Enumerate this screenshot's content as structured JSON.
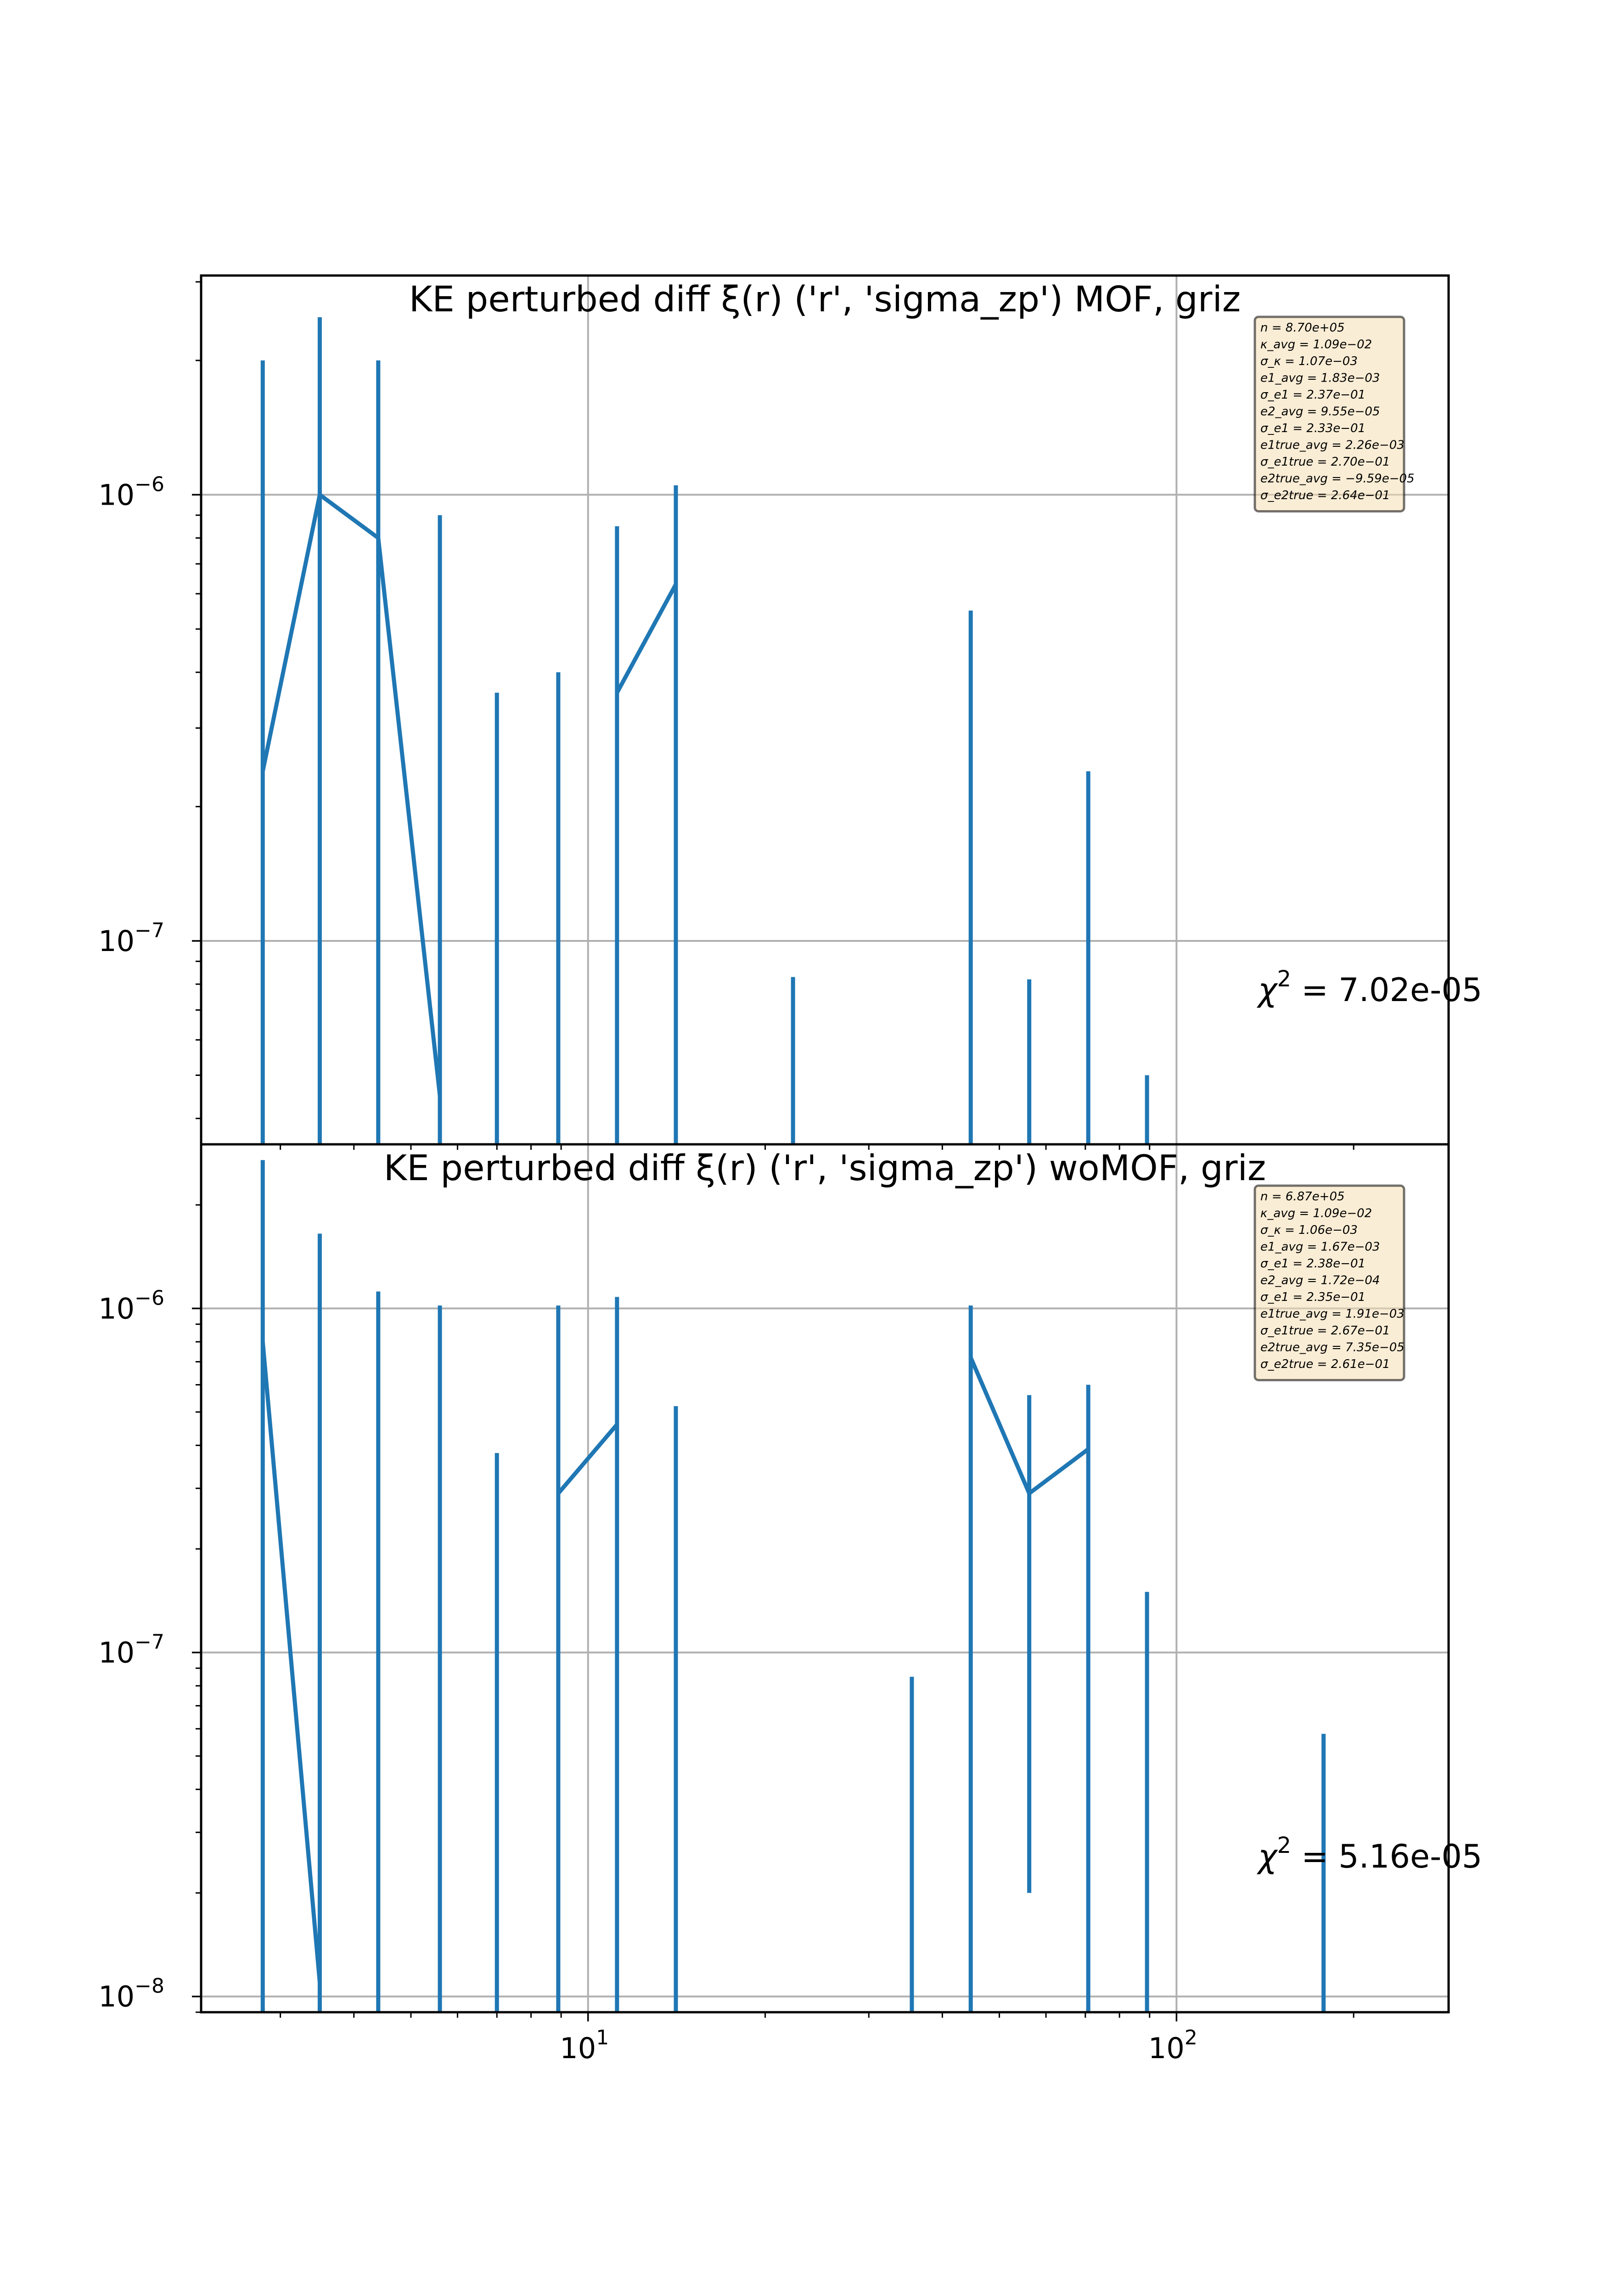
{
  "figure": {
    "colors": {
      "series": "#1f77b4",
      "grid": "#b0b0b0",
      "axes": "#000000",
      "stats_box_bg": "#f5deb3",
      "stats_box_edge": "#000000"
    }
  },
  "chart_data": [
    {
      "type": "line",
      "title": "KE perturbed diff ξ(r) ('r', 'sigma_zp') MOF,  griz",
      "xscale": "log",
      "yscale": "log",
      "xlim": [
        2.2,
        290
      ],
      "ylim": [
        3.5e-08,
        3.1e-06
      ],
      "grid": true,
      "x_ticks": [
        {
          "value": 10,
          "base": "10",
          "exp": "1"
        },
        {
          "value": 100,
          "base": "10",
          "exp": "2"
        }
      ],
      "y_ticks": [
        {
          "value": 1e-06,
          "base": "10",
          "exp": "−6"
        },
        {
          "value": 1e-07,
          "base": "10",
          "exp": "−7"
        }
      ],
      "series": [
        {
          "line_x": [
            2.8,
            3.5,
            4.4,
            5.6
          ],
          "line_y": [
            2.4e-07,
            1e-06,
            8e-07,
            4.5e-08
          ]
        },
        {
          "line_x": [
            11.2,
            14.1
          ],
          "line_y": [
            3.6e-07,
            6.3e-07
          ]
        }
      ],
      "error_bars": [
        {
          "x": 2.8,
          "upper": 2e-06
        },
        {
          "x": 3.5,
          "upper": 2.5e-06
        },
        {
          "x": 4.4,
          "upper": 2e-06
        },
        {
          "x": 5.6,
          "upper": 9e-07
        },
        {
          "x": 7.0,
          "upper": 3.6e-07
        },
        {
          "x": 8.9,
          "upper": 4e-07
        },
        {
          "x": 11.2,
          "upper": 8.5e-07
        },
        {
          "x": 14.1,
          "upper": 1.05e-06
        },
        {
          "x": 22.3,
          "upper": 8.3e-08
        },
        {
          "x": 44.7,
          "upper": 5.5e-07
        },
        {
          "x": 56.2,
          "upper": 8.2e-08
        },
        {
          "x": 70.8,
          "upper": 2.4e-07
        },
        {
          "x": 89.1,
          "upper": 5e-08
        }
      ],
      "chi2": {
        "label": "χ",
        "exp": "2",
        "value": " = 7.02e-05"
      },
      "stats": [
        "n = 8.70e+05",
        "κ_avg = 1.09e−02",
        "σ_κ = 1.07e−03",
        "e1_avg = 1.83e−03",
        "σ_e1 = 2.37e−01",
        "e2_avg = 9.55e−05",
        "σ_e1 = 2.33e−01",
        "e1true_avg = 2.26e−03",
        "σ_e1true = 2.70e−01",
        "e2true_avg = −9.59e−05",
        "σ_e2true = 2.64e−01"
      ]
    },
    {
      "type": "line",
      "title": "KE perturbed diff ξ(r) ('r', 'sigma_zp') woMOF,  griz",
      "xscale": "log",
      "yscale": "log",
      "xlim": [
        2.2,
        290
      ],
      "ylim": [
        9e-09,
        3e-06
      ],
      "grid": true,
      "x_ticks": [
        {
          "value": 10,
          "base": "10",
          "exp": "1"
        },
        {
          "value": 100,
          "base": "10",
          "exp": "2"
        }
      ],
      "y_ticks": [
        {
          "value": 1e-06,
          "base": "10",
          "exp": "−6"
        },
        {
          "value": 1e-07,
          "base": "10",
          "exp": "−7"
        },
        {
          "value": 1e-08,
          "base": "10",
          "exp": "−8"
        }
      ],
      "series": [
        {
          "line_x": [
            2.8,
            3.5
          ],
          "line_y": [
            8e-07,
            1.1e-08
          ]
        },
        {
          "line_x": [
            8.9,
            11.2
          ],
          "line_y": [
            2.9e-07,
            4.6e-07
          ]
        },
        {
          "line_x": [
            44.7,
            56.2,
            70.8
          ],
          "line_y": [
            7.2e-07,
            2.9e-07,
            3.9e-07
          ]
        }
      ],
      "error_bars": [
        {
          "x": 2.8,
          "upper": 2.7e-06
        },
        {
          "x": 3.5,
          "upper": 1.65e-06
        },
        {
          "x": 4.4,
          "upper": 1.12e-06
        },
        {
          "x": 5.6,
          "upper": 1.02e-06
        },
        {
          "x": 7.0,
          "upper": 3.8e-07
        },
        {
          "x": 8.9,
          "upper": 1.02e-06
        },
        {
          "x": 11.2,
          "upper": 1.08e-06
        },
        {
          "x": 14.1,
          "upper": 5.2e-07
        },
        {
          "x": 35.5,
          "upper": 8.5e-08
        },
        {
          "x": 44.7,
          "upper": 1.02e-06
        },
        {
          "x": 56.2,
          "upper": 5.6e-07,
          "lower": 2e-08
        },
        {
          "x": 70.8,
          "upper": 6e-07
        },
        {
          "x": 89.1,
          "upper": 1.5e-07
        },
        {
          "x": 177.8,
          "upper": 5.8e-08
        }
      ],
      "chi2": {
        "label": "χ",
        "exp": "2",
        "value": " = 5.16e-05"
      },
      "stats": [
        "n = 6.87e+05",
        "κ_avg = 1.09e−02",
        "σ_κ = 1.06e−03",
        "e1_avg = 1.67e−03",
        "σ_e1 = 2.38e−01",
        "e2_avg = 1.72e−04",
        "σ_e1 = 2.35e−01",
        "e1true_avg = 1.91e−03",
        "σ_e1true = 2.67e−01",
        "e2true_avg = 7.35e−05",
        "σ_e2true = 2.61e−01"
      ]
    }
  ]
}
